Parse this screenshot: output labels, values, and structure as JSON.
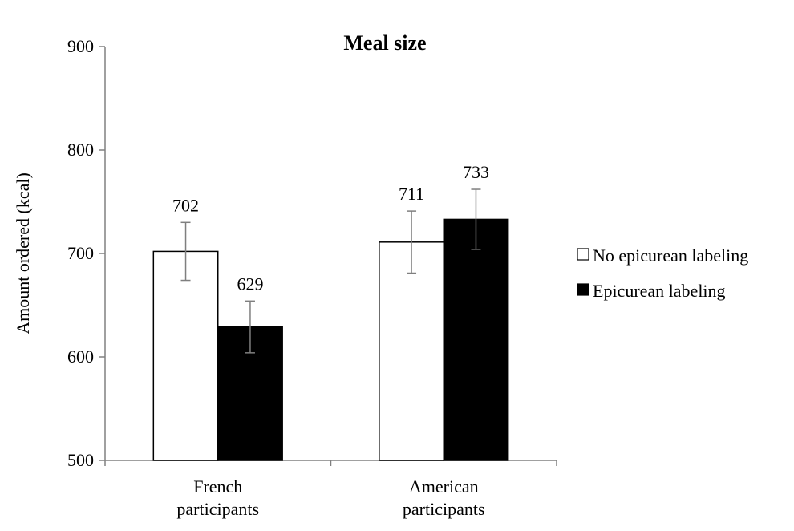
{
  "chart_data": {
    "type": "bar",
    "title": "Meal size",
    "xlabel": "",
    "ylabel": "Amount ordered (kcal)",
    "ylim": [
      500,
      900
    ],
    "yticks": [
      500,
      600,
      700,
      800,
      900
    ],
    "categories": [
      [
        "French",
        "participants"
      ],
      [
        "American",
        "participants"
      ]
    ],
    "series": [
      {
        "name": "No epicurean labeling",
        "color": "#ffffff",
        "values": [
          702,
          711
        ],
        "error": [
          28,
          30
        ],
        "labels": [
          "702",
          "711"
        ]
      },
      {
        "name": "Epicurean labeling",
        "color": "#000000",
        "values": [
          629,
          733
        ],
        "error": [
          25,
          29
        ],
        "labels": [
          "629",
          "733"
        ]
      }
    ],
    "grid": false,
    "legend_position": "right"
  }
}
